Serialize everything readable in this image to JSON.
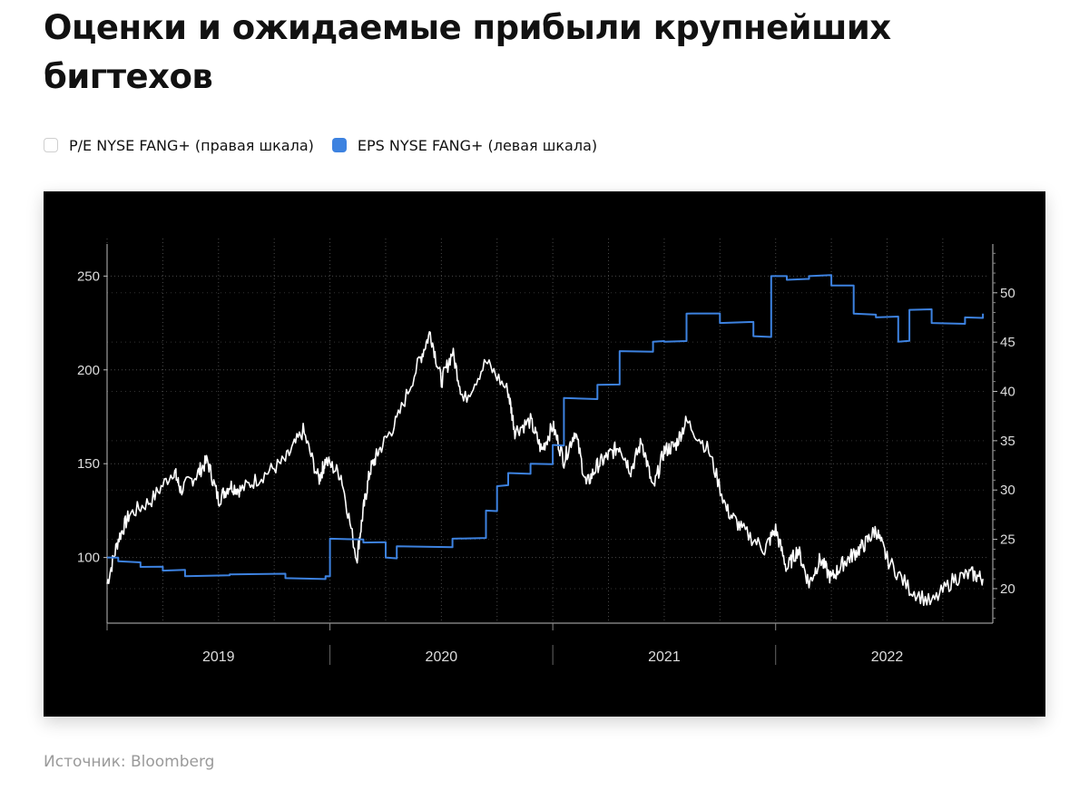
{
  "title": "Оценки и ожидаемые прибыли крупнейших бигтехов",
  "legend": {
    "pe_label": "P/E NYSE FANG+ (правая шкала)",
    "eps_label": "EPS NYSE FANG+ (левая шкала)"
  },
  "source": "Источник: Bloomberg",
  "colors": {
    "pe_line": "#ffffff",
    "eps_line": "#3d82e0",
    "background": "#000000"
  },
  "chart_data": {
    "type": "line",
    "title": "Оценки и ожидаемые прибыли крупнейших бигтехов",
    "x_range": [
      2019.0,
      2022.95
    ],
    "year_labels": [
      "2019",
      "2020",
      "2021",
      "2022"
    ],
    "left_axis": {
      "ticks": [
        100,
        150,
        200,
        250
      ],
      "range": [
        65,
        270
      ]
    },
    "right_axis": {
      "ticks": [
        20,
        25,
        30,
        35,
        40,
        45,
        50
      ],
      "range": [
        16.5,
        55.5
      ]
    },
    "grid": true,
    "series": [
      {
        "name": "P/E NYSE FANG+ (правая шкала)",
        "axis": "right",
        "x": [
          2019.0,
          2019.05,
          2019.1,
          2019.2,
          2019.3,
          2019.33,
          2019.4,
          2019.45,
          2019.5,
          2019.55,
          2019.6,
          2019.7,
          2019.8,
          2019.88,
          2019.95,
          2019.98,
          2020.05,
          2020.12,
          2020.15,
          2020.18,
          2020.22,
          2020.3,
          2020.4,
          2020.45,
          2020.5,
          2020.55,
          2020.6,
          2020.7,
          2020.8,
          2020.83,
          2020.9,
          2020.95,
          2021.0,
          2021.05,
          2021.1,
          2021.15,
          2021.2,
          2021.25,
          2021.3,
          2021.35,
          2021.4,
          2021.45,
          2021.5,
          2021.55,
          2021.6,
          2021.7,
          2021.78,
          2021.85,
          2021.95,
          2022.0,
          2022.05,
          2022.1,
          2022.15,
          2022.2,
          2022.25,
          2022.3,
          2022.35,
          2022.4,
          2022.45,
          2022.5,
          2022.6,
          2022.7,
          2022.8,
          2022.88,
          2022.93
        ],
        "values": [
          20.5,
          25,
          27.5,
          29,
          32,
          30,
          31.5,
          33,
          29,
          30.5,
          30,
          31.5,
          33,
          36,
          31,
          33,
          31.5,
          23,
          28,
          32,
          34,
          37,
          43,
          46,
          41,
          44,
          39,
          43,
          40,
          36,
          37,
          34,
          36.5,
          33,
          36,
          30.5,
          32.5,
          33.5,
          34.5,
          32,
          35,
          30,
          34,
          34.5,
          37,
          34,
          28,
          26,
          24,
          26,
          22,
          24,
          20.5,
          23,
          21,
          22.5,
          23.5,
          24.5,
          26,
          23,
          20,
          18.5,
          21,
          21.5,
          21
        ]
      },
      {
        "name": "EPS NYSE FANG+ (левая шкала)",
        "axis": "left",
        "x": [
          2019.0,
          2019.05,
          2019.15,
          2019.25,
          2019.35,
          2019.55,
          2019.8,
          2019.98,
          2020.0,
          2020.15,
          2020.25,
          2020.3,
          2020.55,
          2020.7,
          2020.75,
          2020.8,
          2020.9,
          2021.0,
          2021.05,
          2021.2,
          2021.3,
          2021.45,
          2021.5,
          2021.6,
          2021.75,
          2021.9,
          2021.98,
          2022.05,
          2022.15,
          2022.25,
          2022.35,
          2022.45,
          2022.55,
          2022.6,
          2022.7,
          2022.85,
          2022.93
        ],
        "values": [
          100,
          98,
          95,
          93,
          90,
          91,
          89,
          90,
          110,
          108,
          100,
          106,
          110,
          125,
          138,
          145,
          150,
          160,
          185,
          192,
          210,
          215,
          215,
          230,
          225,
          218,
          250,
          248,
          250,
          245,
          230,
          228,
          215,
          232,
          225,
          228,
          230
        ]
      }
    ]
  }
}
